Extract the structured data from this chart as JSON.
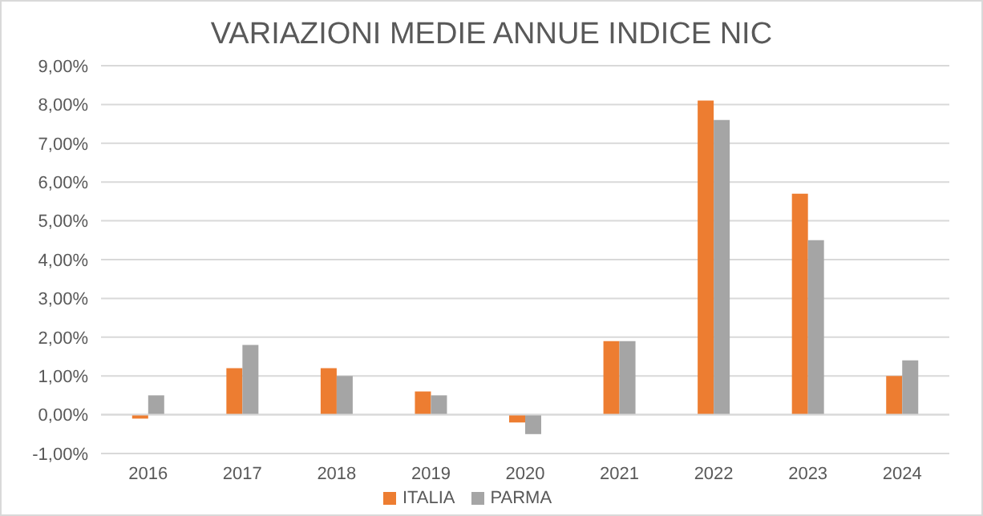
{
  "chart_data": {
    "type": "bar",
    "title": "VARIAZIONI MEDIE ANNUE INDICE NIC",
    "categories": [
      "2016",
      "2017",
      "2018",
      "2019",
      "2020",
      "2021",
      "2022",
      "2023",
      "2024"
    ],
    "series": [
      {
        "name": "ITALIA",
        "color": "#ed7d31",
        "values": [
          -0.1,
          1.2,
          1.2,
          0.6,
          -0.2,
          1.9,
          8.1,
          5.7,
          1.0
        ]
      },
      {
        "name": "PARMA",
        "color": "#a5a5a5",
        "values": [
          0.5,
          1.8,
          1.0,
          0.5,
          -0.5,
          1.9,
          7.6,
          4.5,
          1.4
        ]
      }
    ],
    "ylim": [
      -1,
      9
    ],
    "yticks": [
      {
        "value": -1,
        "label": "-1,00%"
      },
      {
        "value": 0,
        "label": "0,00%"
      },
      {
        "value": 1,
        "label": "1,00%"
      },
      {
        "value": 2,
        "label": "2,00%"
      },
      {
        "value": 3,
        "label": "3,00%"
      },
      {
        "value": 4,
        "label": "4,00%"
      },
      {
        "value": 5,
        "label": "5,00%"
      },
      {
        "value": 6,
        "label": "6,00%"
      },
      {
        "value": 7,
        "label": "7,00%"
      },
      {
        "value": 8,
        "label": "8,00%"
      },
      {
        "value": 9,
        "label": "9,00%"
      }
    ],
    "grid": "y",
    "legend": "bottom"
  }
}
